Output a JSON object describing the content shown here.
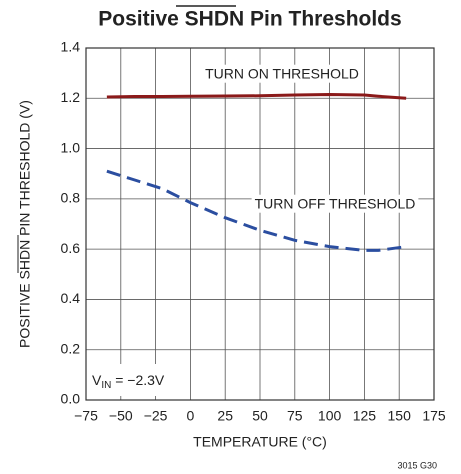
{
  "chart_data": {
    "type": "line",
    "title": "Positive SHDN Pin Thresholds",
    "x_label": "TEMPERATURE (°C)",
    "y_label": "POSITIVE SHDN PIN THRESHOLD (V)",
    "x": [
      -60,
      -40,
      -20,
      0,
      25,
      50,
      75,
      100,
      125,
      135,
      155
    ],
    "series": [
      {
        "name": "TURN ON THRESHOLD",
        "color": "#8b1a1a",
        "style": "solid",
        "values": [
          1.205,
          1.207,
          1.207,
          1.208,
          1.209,
          1.21,
          1.213,
          1.215,
          1.213,
          1.208,
          1.2
        ]
      },
      {
        "name": "TURN OFF THRESHOLD",
        "color": "#2b4ea0",
        "style": "dashed",
        "values": [
          0.91,
          0.875,
          0.84,
          0.785,
          0.725,
          0.675,
          0.635,
          0.61,
          0.595,
          0.595,
          0.61
        ]
      }
    ],
    "annotation": {
      "base": "V",
      "sub": "IN",
      "rest": " = −2.3V"
    },
    "footnote": "3015 G30",
    "xlim": [
      -75,
      175
    ],
    "xticks": [
      {
        "value": -75,
        "label": "−75"
      },
      {
        "value": -50,
        "label": "−50"
      },
      {
        "value": -25,
        "label": "−25"
      },
      0,
      25,
      50,
      75,
      100,
      125,
      150,
      175
    ],
    "ylim": [
      0,
      1.4
    ],
    "yticks": [
      {
        "value": 0,
        "label": "0.0"
      },
      0.2,
      0.4,
      0.6,
      0.8,
      {
        "value": 1,
        "label": "1.0"
      },
      1.2,
      1.4
    ],
    "grid": true
  }
}
